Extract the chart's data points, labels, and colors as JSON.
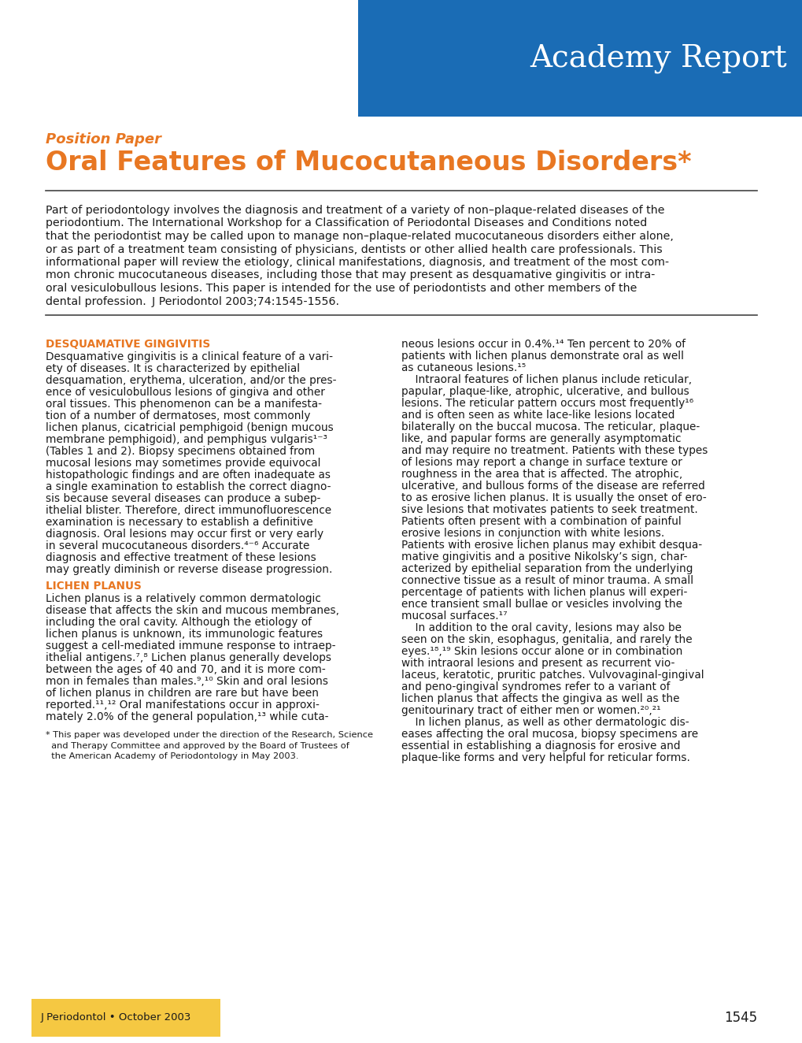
{
  "bg_color": "#ffffff",
  "blue_box_color": "#1a6cb5",
  "orange_color": "#e87722",
  "yellow_box_color": "#f5c842",
  "text_dark": "#1a1a1a",
  "academy_report_text": "Academy Report",
  "position_paper_text": "Position Paper",
  "main_title": "Oral Features of Mucocutaneous Disorders*",
  "abstract_lines": [
    "Part of periodontology involves the diagnosis and treatment of a variety of non–plaque-related diseases of the",
    "periodontium. The International Workshop for a Classification of Periodontal Diseases and Conditions noted",
    "that the periodontist may be called upon to manage non–plaque-related mucocutaneous disorders either alone,",
    "or as part of a treatment team consisting of physicians, dentists or other allied health care professionals. This",
    "informational paper will review the etiology, clinical manifestations, diagnosis, and treatment of the most com-",
    "mon chronic mucocutaneous diseases, including those that may present as desquamative gingivitis or intra-",
    "oral vesiculobullous lesions. This paper is intended for the use of periodontists and other members of the",
    "dental profession.  J Periodontol 2003;74:1545-1556."
  ],
  "section1_title": "DESQUAMATIVE GINGIVITIS",
  "section1_lines": [
    "Desquamative gingivitis is a clinical feature of a vari-",
    "ety of diseases. It is characterized by epithelial",
    "desquamation, erythema, ulceration, and/or the pres-",
    "ence of vesiculobullous lesions of gingiva and other",
    "oral tissues. This phenomenon can be a manifesta-",
    "tion of a number of dermatoses, most commonly",
    "lichen planus, cicatricial pemphigoid (benign mucous",
    "membrane pemphigoid), and pemphigus vulgaris¹⁻³",
    "(Tables 1 and 2). Biopsy specimens obtained from",
    "mucosal lesions may sometimes provide equivocal",
    "histopathologic findings and are often inadequate as",
    "a single examination to establish the correct diagno-",
    "sis because several diseases can produce a subep-",
    "ithelial blister. Therefore, direct immunofluorescence",
    "examination is necessary to establish a definitive",
    "diagnosis. Oral lesions may occur first or very early",
    "in several mucocutaneous disorders.⁴⁻⁶ Accurate",
    "diagnosis and effective treatment of these lesions",
    "may greatly diminish or reverse disease progression."
  ],
  "section2_title": "LICHEN PLANUS",
  "section2_lines": [
    "Lichen planus is a relatively common dermatologic",
    "disease that affects the skin and mucous membranes,",
    "including the oral cavity. Although the etiology of",
    "lichen planus is unknown, its immunologic features",
    "suggest a cell-mediated immune response to intraep-",
    "ithelial antigens.⁷,⁸ Lichen planus generally develops",
    "between the ages of 40 and 70, and it is more com-",
    "mon in females than males.⁹,¹⁰ Skin and oral lesions",
    "of lichen planus in children are rare but have been",
    "reported.¹¹,¹² Oral manifestations occur in approxi-",
    "mately 2.0% of the general population,¹³ while cuta-"
  ],
  "right_col_lines": [
    "neous lesions occur in 0.4%.¹⁴ Ten percent to 20% of",
    "patients with lichen planus demonstrate oral as well",
    "as cutaneous lesions.¹⁵",
    "    Intraoral features of lichen planus include reticular,",
    "papular, plaque-like, atrophic, ulcerative, and bullous",
    "lesions. The reticular pattern occurs most frequently¹⁶",
    "and is often seen as white lace-like lesions located",
    "bilaterally on the buccal mucosa. The reticular, plaque-",
    "like, and papular forms are generally asymptomatic",
    "and may require no treatment. Patients with these types",
    "of lesions may report a change in surface texture or",
    "roughness in the area that is affected. The atrophic,",
    "ulcerative, and bullous forms of the disease are referred",
    "to as erosive lichen planus. It is usually the onset of ero-",
    "sive lesions that motivates patients to seek treatment.",
    "Patients often present with a combination of painful",
    "erosive lesions in conjunction with white lesions.",
    "Patients with erosive lichen planus may exhibit desqua-",
    "mative gingivitis and a positive Nikolsky’s sign, char-",
    "acterized by epithelial separation from the underlying",
    "connective tissue as a result of minor trauma. A small",
    "percentage of patients with lichen planus will experi-",
    "ence transient small bullae or vesicles involving the",
    "mucosal surfaces.¹⁷",
    "    In addition to the oral cavity, lesions may also be",
    "seen on the skin, esophagus, genitalia, and rarely the",
    "eyes.¹⁸,¹⁹ Skin lesions occur alone or in combination",
    "with intraoral lesions and present as recurrent vio-",
    "laceus, keratotic, pruritic patches. Vulvovaginal-gingival",
    "and peno-gingival syndromes refer to a variant of",
    "lichen planus that affects the gingiva as well as the",
    "genitourinary tract of either men or women.²⁰,²¹",
    "    In lichen planus, as well as other dermatologic dis-",
    "eases affecting the oral mucosa, biopsy specimens are",
    "essential in establishing a diagnosis for erosive and",
    "plaque-like forms and very helpful for reticular forms."
  ],
  "footnote_lines": [
    "* This paper was developed under the direction of the Research, Science",
    "  and Therapy Committee and approved by the Board of Trustees of",
    "  the American Academy of Periodontology in May 2003."
  ],
  "footer_text": "J Periodontol • October 2003",
  "page_number": "1545"
}
